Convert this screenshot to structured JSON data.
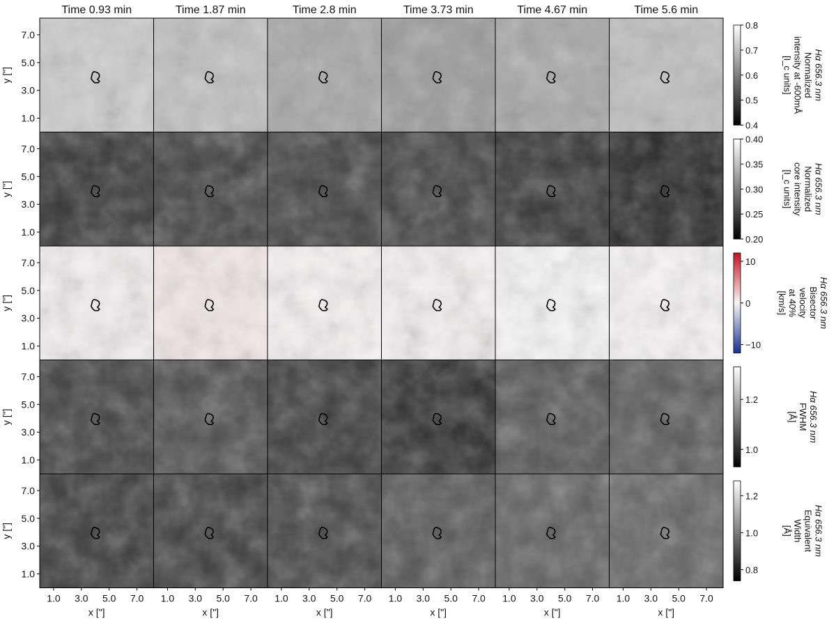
{
  "chart_data": {
    "type": "heatmap",
    "layout": "grid of image panels: 5 quantity rows x 6 time columns, one colorbar per row",
    "time_unit": "min",
    "columns": [
      {
        "title": "Time 0.93 min",
        "time": 0.93
      },
      {
        "title": "Time 1.87 min",
        "time": 1.87
      },
      {
        "title": "Time 2.8 min",
        "time": 2.8
      },
      {
        "title": "Time 3.73 min",
        "time": 3.73
      },
      {
        "title": "Time 4.67 min",
        "time": 4.67
      },
      {
        "title": "Time 5.6 min",
        "time": 5.6
      }
    ],
    "x_axis": {
      "label": "x [\"]",
      "ticks": [
        "1.0",
        "3.0",
        "5.0",
        "7.0"
      ],
      "range": [
        0,
        8.2
      ]
    },
    "y_axis": {
      "label": "y [\"]",
      "ticks": [
        "1.0",
        "3.0",
        "5.0",
        "7.0"
      ],
      "range": [
        0,
        8.2
      ]
    },
    "contour_color": "#000000",
    "rows": [
      {
        "quantity": "intensity_wing",
        "colorbar_label": [
          "Hα 656.3 nm",
          "Normalized",
          "intensity at -600mÅ",
          "[I_c units]"
        ],
        "cmap": "gray",
        "clim": [
          0.4,
          0.8
        ],
        "cbar_ticks": [
          "0.4",
          "0.5",
          "0.6",
          "0.7",
          "0.8"
        ],
        "panel_mean": [
          0.72,
          0.7,
          0.66,
          0.64,
          0.66,
          0.7
        ]
      },
      {
        "quantity": "core_intensity",
        "colorbar_label": [
          "Hα 656.3 nm",
          "Normalized",
          "core intensity",
          "[I_c units]"
        ],
        "cmap": "gray",
        "clim": [
          0.2,
          0.4
        ],
        "cbar_ticks": [
          "0.20",
          "0.25",
          "0.30",
          "0.35",
          "0.40"
        ],
        "panel_mean": [
          0.24,
          0.25,
          0.25,
          0.25,
          0.24,
          0.23
        ]
      },
      {
        "quantity": "bisector_velocity",
        "colorbar_label": [
          "Hα 656.3 nm",
          "Bisector",
          "velocity",
          "at 40%",
          "[km/s]"
        ],
        "cmap": "bwr",
        "clim": [
          -12,
          12
        ],
        "cbar_ticks": [
          "−10",
          "0",
          "10"
        ],
        "panel_mean": [
          0.4,
          0.8,
          0.2,
          0.3,
          0.0,
          0.1
        ]
      },
      {
        "quantity": "fwhm",
        "colorbar_label": [
          "Hα 656.3 nm",
          "FWHM",
          "[Å]"
        ],
        "cmap": "gray",
        "clim": [
          0.93,
          1.33
        ],
        "cbar_ticks": [
          "1.0",
          "1.2"
        ],
        "panel_mean": [
          1.03,
          1.05,
          1.02,
          1.0,
          1.06,
          1.07
        ]
      },
      {
        "quantity": "equivalent_width",
        "colorbar_label": [
          "Hα 656.3 nm",
          "Equivalent",
          "Width",
          "[Å]"
        ],
        "cmap": "gray",
        "clim": [
          0.74,
          1.28
        ],
        "cbar_ticks": [
          "0.8",
          "1.0",
          "1.2"
        ],
        "panel_mean": [
          0.86,
          0.87,
          0.88,
          0.92,
          0.94,
          0.95
        ]
      }
    ]
  }
}
